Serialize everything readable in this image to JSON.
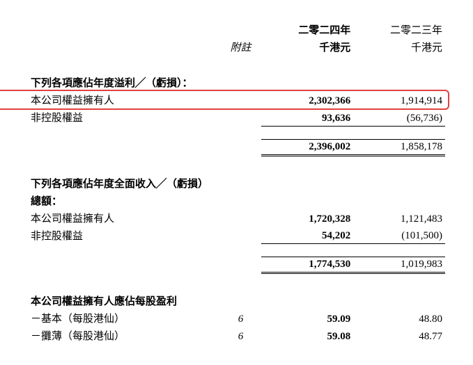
{
  "header": {
    "note_label": "附註",
    "col_2024": "二零二四年",
    "col_2023": "二零二三年",
    "unit_2024": "千港元",
    "unit_2023": "千港元"
  },
  "section1": {
    "title": "下列各項應佔年度溢利╱（虧損）：",
    "rows": [
      {
        "label": "本公司權益擁有人",
        "v2024": "2,302,366",
        "v2023": "1,914,914",
        "highlight": true
      },
      {
        "label": "非控股權益",
        "v2024": "93,636",
        "v2023": "(56,736)"
      }
    ],
    "total": {
      "v2024": "2,396,002",
      "v2023": "1,858,178"
    }
  },
  "section2": {
    "title_l1": "下列各項應佔年度全面收入╱（虧損）",
    "title_l2": "總額：",
    "rows": [
      {
        "label": "本公司權益擁有人",
        "v2024": "1,720,328",
        "v2023": "1,121,483"
      },
      {
        "label": "非控股權益",
        "v2024": "54,202",
        "v2023": "(101,500)"
      }
    ],
    "total": {
      "v2024": "1,774,530",
      "v2023": "1,019,983"
    }
  },
  "section3": {
    "title": "本公司權益擁有人應佔每股盈利",
    "rows": [
      {
        "label": "－基本（每股港仙）",
        "note": "6",
        "v2024": "59.09",
        "v2023": "48.80"
      },
      {
        "label": "－攤薄（每股港仙）",
        "note": "6",
        "v2024": "59.08",
        "v2023": "48.77"
      }
    ]
  },
  "style": {
    "highlight_border_color": "#e04040",
    "text_color": "#000000",
    "background_color": "#ffffff"
  }
}
